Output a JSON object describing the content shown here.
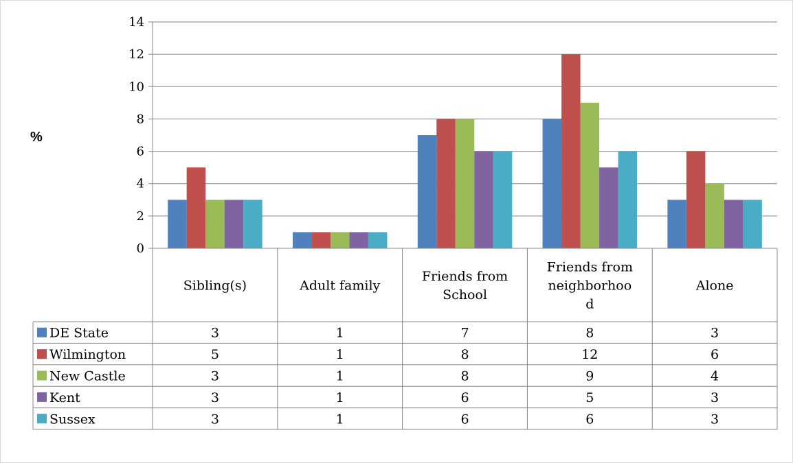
{
  "chart_data": {
    "type": "bar",
    "ylabel": "%",
    "ylim": [
      0,
      14
    ],
    "yticks": [
      0,
      2,
      4,
      6,
      8,
      10,
      12,
      14
    ],
    "grid": true,
    "legend": "data-table-left",
    "categories": [
      [
        "Sibling(s)"
      ],
      [
        "Adult family"
      ],
      [
        "Friends from",
        "School"
      ],
      [
        "Friends from",
        "neighborhoo",
        "d"
      ],
      [
        "Alone"
      ]
    ],
    "series": [
      {
        "name": "DE State",
        "color": "#4f81bd",
        "values": [
          3,
          1,
          7,
          8,
          3
        ]
      },
      {
        "name": "Wilmington",
        "color": "#c0504d",
        "values": [
          5,
          1,
          8,
          12,
          6
        ]
      },
      {
        "name": "New Castle",
        "color": "#9bbb59",
        "values": [
          3,
          1,
          8,
          9,
          4
        ]
      },
      {
        "name": "Kent",
        "color": "#8064a2",
        "values": [
          3,
          1,
          6,
          5,
          3
        ]
      },
      {
        "name": "Sussex",
        "color": "#4bacc6",
        "values": [
          3,
          1,
          6,
          6,
          3
        ]
      }
    ]
  }
}
